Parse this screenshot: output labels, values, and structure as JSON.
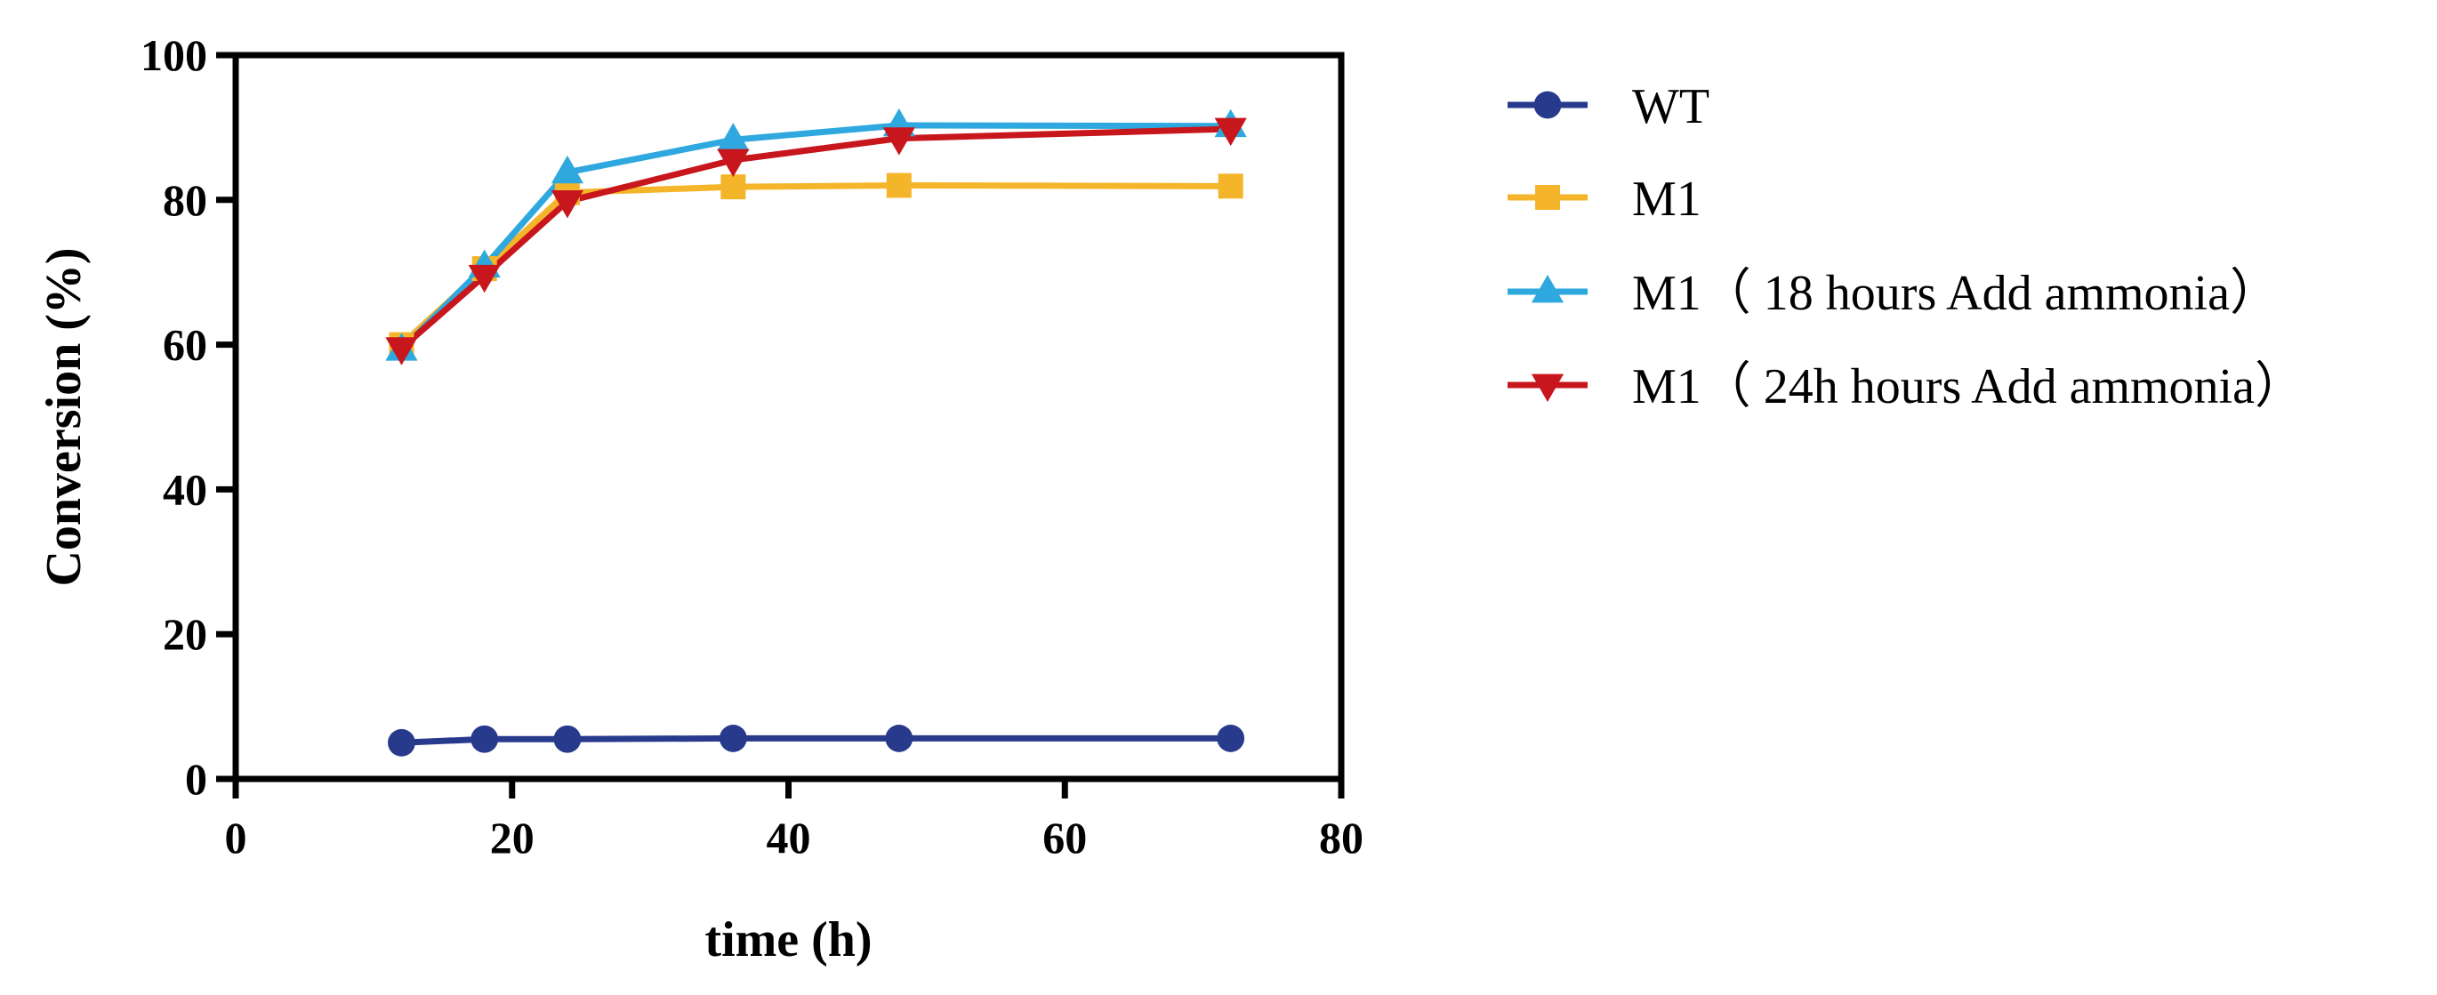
{
  "chart_data": {
    "type": "line",
    "xlabel": "time (h)",
    "ylabel": "Conversion (%)",
    "xlim": [
      0,
      80
    ],
    "ylim": [
      0,
      100
    ],
    "xticks": [
      "0",
      "20",
      "40",
      "60",
      "80"
    ],
    "yticks": [
      "0",
      "20",
      "40",
      "60",
      "80",
      "100"
    ],
    "grid": false,
    "legend_position": "right",
    "series": [
      {
        "name": "WT",
        "color": "#283A8C",
        "marker": "circle",
        "x": [
          12,
          18,
          24,
          36,
          48,
          72
        ],
        "y": [
          5.0,
          5.5,
          5.5,
          5.6,
          5.6,
          5.6
        ]
      },
      {
        "name": "M1",
        "color": "#F5B52A",
        "marker": "square",
        "x": [
          12,
          18,
          24,
          36,
          48,
          72
        ],
        "y": [
          60.0,
          70.5,
          81.0,
          81.8,
          82.0,
          81.9
        ]
      },
      {
        "name": " M1（ 18 hours Add ammonia）",
        "color": "#2EA8DE",
        "marker": "triangle-up",
        "x": [
          12,
          18,
          24,
          36,
          48,
          72
        ],
        "y": [
          59.3,
          70.8,
          83.8,
          88.3,
          90.3,
          90.2
        ]
      },
      {
        "name": " M1（ 24h hours Add ammonia）",
        "color": "#C8161D",
        "marker": "triangle-down",
        "x": [
          12,
          18,
          24,
          36,
          48,
          72
        ],
        "y": [
          59.5,
          69.5,
          79.8,
          85.5,
          88.5,
          89.8
        ]
      }
    ]
  }
}
